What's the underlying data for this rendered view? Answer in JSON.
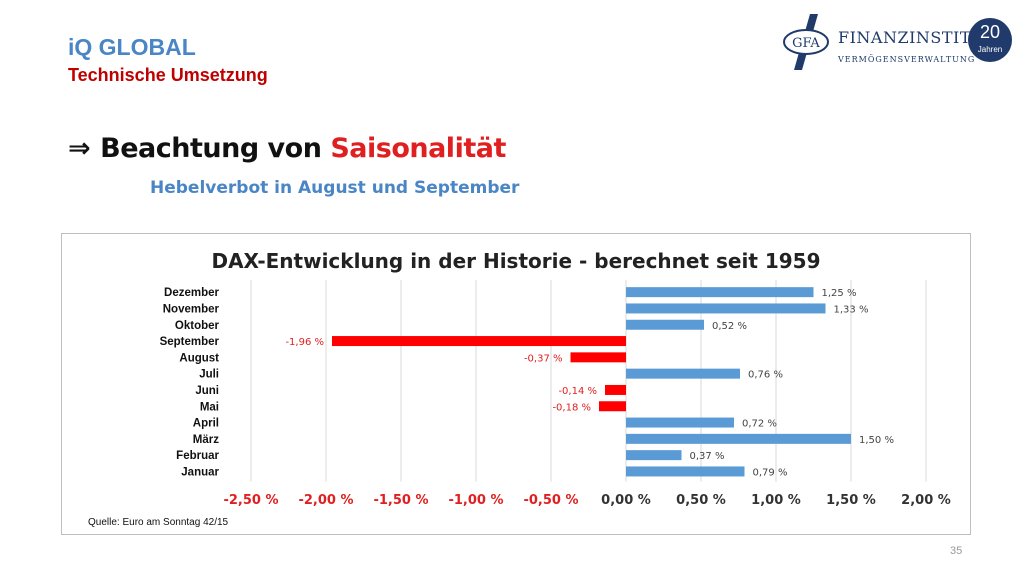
{
  "header": {
    "title": "iQ GLOBAL",
    "subtitle": "Technische Umsetzung"
  },
  "logo": {
    "mark": "GFA",
    "name": "FINANZINSTITUT",
    "tagline": "VERMÖGENSVERWALTUNG",
    "badge_number": "20",
    "badge_word": "Jahren"
  },
  "headline": {
    "arrow": "⇒",
    "prefix": "Beachtung von",
    "highlight": "Saisonalität"
  },
  "subline": "Hebelverbot in August und September",
  "chart_data": {
    "type": "bar",
    "orientation": "horizontal",
    "title": "DAX-Entwicklung in der Historie - berechnet seit 1959",
    "categories": [
      "Dezember",
      "November",
      "Oktober",
      "September",
      "August",
      "Juli",
      "Juni",
      "Mai",
      "April",
      "März",
      "Februar",
      "Januar"
    ],
    "values": [
      1.25,
      1.33,
      0.52,
      -1.96,
      -0.37,
      0.76,
      -0.14,
      -0.18,
      0.72,
      1.5,
      0.37,
      0.79
    ],
    "value_labels": [
      "1,25 %",
      "1,33 %",
      "0,52 %",
      "-1,96 %",
      "-0,37 %",
      "0,76 %",
      "-0,14 %",
      "-0,18 %",
      "0,72 %",
      "1,50 %",
      "0,37 %",
      "0,79 %"
    ],
    "xlim": [
      -2.5,
      2.0
    ],
    "xticks": [
      -2.5,
      -2.0,
      -1.5,
      -1.0,
      -0.5,
      0.0,
      0.5,
      1.0,
      1.5,
      2.0
    ],
    "xtick_labels": [
      "-2,50 %",
      "-2,00 %",
      "-1,50 %",
      "-1,00 %",
      "-0,50 %",
      "0,00 %",
      "0,50 %",
      "1,00 %",
      "1,50 %",
      "2,00 %"
    ],
    "grid": true,
    "positive_color": "#5b9bd5",
    "negative_color": "#ff0000",
    "source": "Quelle: Euro am Sonntag 42/15"
  },
  "page_number": "35"
}
